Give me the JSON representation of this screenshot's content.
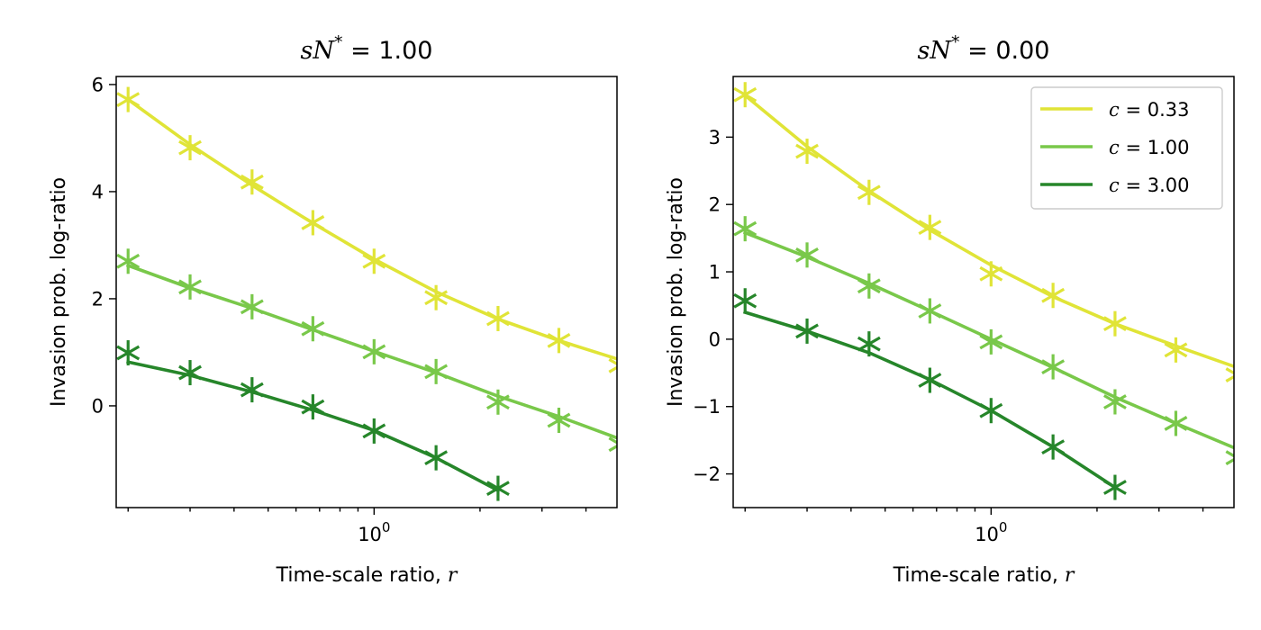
{
  "chart_data": [
    {
      "type": "line",
      "title": "sN* = 1.00",
      "title_parts": {
        "lhs": "sN",
        "sup": "*",
        "rhs": " = 1.00"
      },
      "xlabel": "Time-scale ratio, r",
      "xlabel_parts": {
        "text": "Time-scale ratio, ",
        "var": "r"
      },
      "ylabel": "Invasion prob. log-ratio",
      "xscale": "log",
      "xlim": [
        0.185,
        4.9
      ],
      "ylim": [
        -1.9,
        6.15
      ],
      "xticks_major": [
        {
          "value": 1,
          "label": "10",
          "sup": "0"
        }
      ],
      "yticks": [
        {
          "value": 0,
          "label": "0"
        },
        {
          "value": 2,
          "label": "2"
        },
        {
          "value": 4,
          "label": "4"
        },
        {
          "value": 6,
          "label": "6"
        }
      ],
      "legend": null,
      "series": [
        {
          "name": "c = 0.33",
          "color": "#e0e437",
          "x": [
            0.2,
            0.3,
            0.45,
            0.67,
            1.0,
            1.5,
            2.25,
            3.35,
            5.0
          ],
          "line": [
            5.72,
            4.88,
            4.12,
            3.41,
            2.74,
            2.13,
            1.62,
            1.22,
            0.86
          ],
          "markers": [
            5.72,
            4.82,
            4.18,
            3.42,
            2.7,
            2.02,
            1.63,
            1.22,
            0.75
          ]
        },
        {
          "name": "c = 1.00",
          "color": "#79c84a",
          "x": [
            0.2,
            0.3,
            0.45,
            0.67,
            1.0,
            1.5,
            2.25,
            3.35,
            5.0
          ],
          "line": [
            2.62,
            2.2,
            1.82,
            1.42,
            1.02,
            0.62,
            0.18,
            -0.2,
            -0.62
          ],
          "markers": [
            2.7,
            2.22,
            1.85,
            1.44,
            1.01,
            0.64,
            0.07,
            -0.27,
            -0.72
          ]
        },
        {
          "name": "c = 3.00",
          "color": "#26862a",
          "x": [
            0.2,
            0.3,
            0.45,
            0.67,
            1.0,
            1.5,
            2.25
          ],
          "line": [
            0.82,
            0.57,
            0.26,
            -0.08,
            -0.46,
            -0.97,
            -1.58
          ],
          "markers": [
            0.99,
            0.62,
            0.3,
            -0.02,
            -0.47,
            -0.97,
            -1.54
          ]
        }
      ]
    },
    {
      "type": "line",
      "title": "sN* = 0.00",
      "title_parts": {
        "lhs": "sN",
        "sup": "*",
        "rhs": " = 0.00"
      },
      "xlabel": "Time-scale ratio, r",
      "xlabel_parts": {
        "text": "Time-scale ratio, ",
        "var": "r"
      },
      "ylabel": "Invasion prob. log-ratio",
      "xscale": "log",
      "xlim": [
        0.185,
        4.9
      ],
      "ylim": [
        -2.5,
        3.9
      ],
      "xticks_major": [
        {
          "value": 1,
          "label": "10",
          "sup": "0"
        }
      ],
      "yticks": [
        {
          "value": -2,
          "label": "−2"
        },
        {
          "value": -1,
          "label": "−1"
        },
        {
          "value": 0,
          "label": "0"
        },
        {
          "value": 1,
          "label": "1"
        },
        {
          "value": 2,
          "label": "2"
        },
        {
          "value": 3,
          "label": "3"
        }
      ],
      "legend": {
        "placement": "top-right",
        "entries": [
          {
            "var": "c",
            "rhs": " = 0.33",
            "color": "#e0e437"
          },
          {
            "var": "c",
            "rhs": " = 1.00",
            "color": "#79c84a"
          },
          {
            "var": "c",
            "rhs": " = 3.00",
            "color": "#26862a"
          }
        ]
      },
      "series": [
        {
          "name": "c = 0.33",
          "color": "#e0e437",
          "x": [
            0.2,
            0.3,
            0.45,
            0.67,
            1.0,
            1.5,
            2.25,
            3.35,
            5.0
          ],
          "line": [
            3.62,
            2.86,
            2.2,
            1.62,
            1.1,
            0.63,
            0.23,
            -0.1,
            -0.42
          ],
          "markers": [
            3.63,
            2.79,
            2.18,
            1.66,
            0.97,
            0.65,
            0.23,
            -0.16,
            -0.53
          ]
        },
        {
          "name": "c = 1.00",
          "color": "#79c84a",
          "x": [
            0.2,
            0.3,
            0.45,
            0.67,
            1.0,
            1.5,
            2.25,
            3.35,
            5.0
          ],
          "line": [
            1.58,
            1.22,
            0.83,
            0.42,
            0.0,
            -0.42,
            -0.86,
            -1.25,
            -1.63
          ],
          "markers": [
            1.64,
            1.25,
            0.79,
            0.42,
            -0.04,
            -0.41,
            -0.93,
            -1.25,
            -1.76
          ]
        },
        {
          "name": "c = 3.00",
          "color": "#26862a",
          "x": [
            0.2,
            0.3,
            0.45,
            0.67,
            1.0,
            1.5,
            2.25
          ],
          "line": [
            0.4,
            0.12,
            -0.2,
            -0.6,
            -1.06,
            -1.6,
            -2.2
          ],
          "markers": [
            0.57,
            0.12,
            -0.07,
            -0.61,
            -1.06,
            -1.6,
            -2.2
          ]
        }
      ]
    }
  ]
}
